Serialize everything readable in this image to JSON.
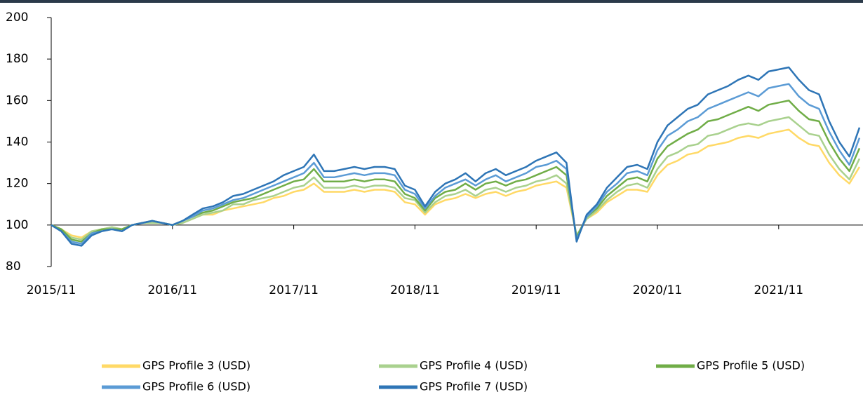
{
  "chart_data": {
    "type": "line",
    "x": [
      "2015/11",
      "2015/12",
      "2016/01",
      "2016/02",
      "2016/03",
      "2016/04",
      "2016/05",
      "2016/06",
      "2016/07",
      "2016/08",
      "2016/09",
      "2016/10",
      "2016/11",
      "2016/12",
      "2017/01",
      "2017/02",
      "2017/03",
      "2017/04",
      "2017/05",
      "2017/06",
      "2017/07",
      "2017/08",
      "2017/09",
      "2017/10",
      "2017/11",
      "2017/12",
      "2018/01",
      "2018/02",
      "2018/03",
      "2018/04",
      "2018/05",
      "2018/06",
      "2018/07",
      "2018/08",
      "2018/09",
      "2018/10",
      "2018/11",
      "2018/12",
      "2019/01",
      "2019/02",
      "2019/03",
      "2019/04",
      "2019/05",
      "2019/06",
      "2019/07",
      "2019/08",
      "2019/09",
      "2019/10",
      "2019/11",
      "2019/12",
      "2020/01",
      "2020/02",
      "2020/03",
      "2020/04",
      "2020/05",
      "2020/06",
      "2020/07",
      "2020/08",
      "2020/09",
      "2020/10",
      "2020/11",
      "2020/12",
      "2021/01",
      "2021/02",
      "2021/03",
      "2021/04",
      "2021/05",
      "2021/06",
      "2021/07",
      "2021/08",
      "2021/09",
      "2021/10",
      "2021/11",
      "2021/12",
      "2022/01",
      "2022/02",
      "2022/03",
      "2022/04",
      "2022/05",
      "2022/06",
      "2022/07"
    ],
    "xlim": [
      "2015/11",
      "2022/07"
    ],
    "xticks": [
      "2015/11",
      "2016/11",
      "2017/11",
      "2018/11",
      "2019/11",
      "2020/11",
      "2021/11"
    ],
    "ylim": [
      80,
      200
    ],
    "yticks": [
      80,
      100,
      120,
      140,
      160,
      180,
      200
    ],
    "xaxis_crosses": 100,
    "legend_position": "bottom",
    "series": [
      {
        "name": "GPS Profile 3 (USD)",
        "color": "#ffd966",
        "values": [
          100,
          98,
          95,
          94,
          97,
          98,
          99,
          98,
          100,
          101,
          101,
          101,
          100,
          101,
          103,
          105,
          105,
          107,
          108,
          109,
          110,
          111,
          113,
          114,
          116,
          117,
          120,
          116,
          116,
          116,
          117,
          116,
          117,
          117,
          116,
          111,
          110,
          105,
          110,
          112,
          113,
          115,
          113,
          115,
          116,
          114,
          116,
          117,
          119,
          120,
          121,
          118,
          95,
          103,
          106,
          111,
          114,
          117,
          117,
          116,
          124,
          129,
          131,
          134,
          135,
          138,
          139,
          140,
          142,
          143,
          142,
          144,
          145,
          146,
          142,
          139,
          138,
          130,
          124,
          120,
          128
        ]
      },
      {
        "name": "GPS Profile 4 (USD)",
        "color": "#a9d18e",
        "values": [
          100,
          98,
          94,
          93,
          97,
          98,
          99,
          98,
          100,
          101,
          101,
          101,
          100,
          101,
          103,
          105,
          106,
          107,
          110,
          110,
          112,
          113,
          114,
          116,
          118,
          119,
          123,
          118,
          118,
          118,
          119,
          118,
          119,
          119,
          118,
          113,
          112,
          106,
          111,
          114,
          115,
          117,
          114,
          117,
          118,
          116,
          118,
          119,
          121,
          122,
          124,
          120,
          95,
          103,
          107,
          112,
          116,
          119,
          120,
          118,
          127,
          133,
          135,
          138,
          139,
          143,
          144,
          146,
          148,
          149,
          148,
          150,
          151,
          152,
          148,
          144,
          143,
          134,
          127,
          122,
          132
        ]
      },
      {
        "name": "GPS Profile 5 (USD)",
        "color": "#70ad47",
        "values": [
          100,
          98,
          93,
          92,
          96,
          98,
          98,
          98,
          100,
          101,
          102,
          101,
          100,
          102,
          104,
          106,
          107,
          109,
          111,
          112,
          113,
          115,
          117,
          119,
          121,
          122,
          127,
          121,
          121,
          121,
          122,
          121,
          122,
          122,
          121,
          115,
          113,
          107,
          113,
          116,
          117,
          120,
          117,
          120,
          121,
          119,
          121,
          122,
          124,
          126,
          128,
          124,
          94,
          104,
          108,
          114,
          118,
          122,
          123,
          121,
          132,
          138,
          141,
          144,
          146,
          150,
          151,
          153,
          155,
          157,
          155,
          158,
          159,
          160,
          155,
          151,
          150,
          140,
          132,
          126,
          137
        ]
      },
      {
        "name": "GPS Profile 6 (USD)",
        "color": "#5b9bd5",
        "values": [
          100,
          97,
          92,
          91,
          96,
          97,
          98,
          97,
          100,
          101,
          102,
          101,
          100,
          102,
          104,
          107,
          108,
          110,
          112,
          113,
          115,
          117,
          119,
          121,
          123,
          125,
          130,
          123,
          123,
          124,
          125,
          124,
          125,
          125,
          124,
          117,
          115,
          108,
          114,
          118,
          120,
          122,
          119,
          122,
          124,
          121,
          123,
          125,
          128,
          129,
          131,
          127,
          93,
          104,
          109,
          116,
          120,
          125,
          126,
          124,
          136,
          143,
          146,
          150,
          152,
          156,
          158,
          160,
          162,
          164,
          162,
          166,
          167,
          168,
          162,
          158,
          156,
          145,
          136,
          129,
          142
        ]
      },
      {
        "name": "GPS Profile 7 (USD)",
        "color": "#2e75b6",
        "values": [
          100,
          97,
          91,
          90,
          95,
          97,
          98,
          97,
          100,
          101,
          102,
          101,
          100,
          102,
          105,
          108,
          109,
          111,
          114,
          115,
          117,
          119,
          121,
          124,
          126,
          128,
          134,
          126,
          126,
          127,
          128,
          127,
          128,
          128,
          127,
          119,
          117,
          109,
          116,
          120,
          122,
          125,
          121,
          125,
          127,
          124,
          126,
          128,
          131,
          133,
          135,
          130,
          92,
          105,
          110,
          118,
          123,
          128,
          129,
          127,
          140,
          148,
          152,
          156,
          158,
          163,
          165,
          167,
          170,
          172,
          170,
          174,
          175,
          176,
          170,
          165,
          163,
          150,
          140,
          133,
          147
        ]
      }
    ]
  }
}
